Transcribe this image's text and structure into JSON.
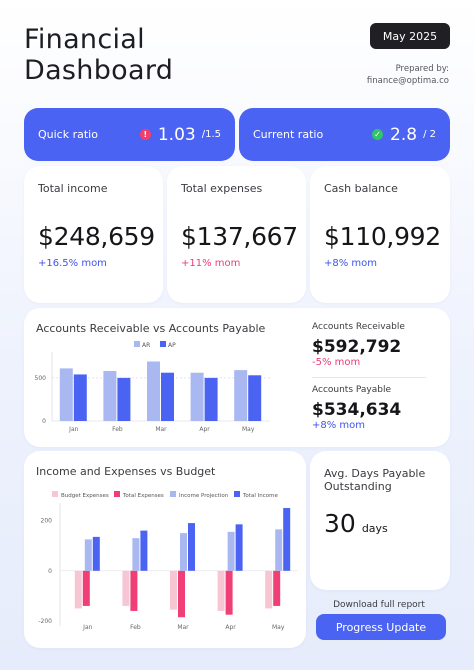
{
  "header": {
    "title_line1": "Financial",
    "title_line2": "Dashboard",
    "date": "May 2025",
    "prepared_by": "Prepared by:",
    "email": "finance@optima.co"
  },
  "ratios": [
    {
      "label": "Quick ratio",
      "value": "1.03",
      "target": "/1.5",
      "status": "alert",
      "badge_color": "#f23e6a"
    },
    {
      "label": "Current ratio",
      "value": "2.8",
      "target": "/ 2",
      "status": "ok",
      "badge_color": "#33c36b"
    }
  ],
  "kpis": [
    {
      "label": "Total income",
      "value": "$248,659",
      "change": "+16.5% mom",
      "tone": "blue"
    },
    {
      "label": "Total expenses",
      "value": "$137,667",
      "change": "+11% mom",
      "tone": "pink"
    },
    {
      "label": "Cash balance",
      "value": "$110,992",
      "change": "+8% mom",
      "tone": "blue"
    }
  ],
  "ar_ap": {
    "title": "Accounts Receivable vs Accounts Payable",
    "receivable_label": "Accounts Receivable",
    "receivable_value": "$592,792",
    "receivable_change": "-5% mom",
    "payable_label": "Accounts Payable",
    "payable_value": "$534,634",
    "payable_change": "+8% mom"
  },
  "budget": {
    "title": "Income and Expenses vs Budget"
  },
  "dpo": {
    "label": "Avg. Days Payable Outstanding",
    "value": "30",
    "unit": "days"
  },
  "actions": {
    "download_text": "Download full report",
    "button_label": "Progress Update"
  },
  "colors": {
    "accent": "#4b63f2",
    "light_blue": "#aab8f1",
    "pink": "#ef3f76",
    "light_pink": "#f7c6d4"
  },
  "chart_data": [
    {
      "type": "bar",
      "title": "Accounts Receivable vs Accounts Payable",
      "categories": [
        "Jan",
        "Feb",
        "Mar",
        "Apr",
        "May"
      ],
      "series": [
        {
          "name": "AR",
          "values": [
            610,
            580,
            690,
            560,
            590
          ]
        },
        {
          "name": "AP",
          "values": [
            540,
            500,
            560,
            500,
            530
          ]
        }
      ],
      "yticks": [
        0,
        500
      ],
      "ylim": [
        0,
        800
      ],
      "legend": "top-center",
      "reference_line": 500
    },
    {
      "type": "bar",
      "title": "Income and Expenses vs Budget",
      "categories": [
        "Jan",
        "Feb",
        "Mar",
        "Apr",
        "May"
      ],
      "series": [
        {
          "name": "Budget Expenses",
          "values": [
            -150,
            -140,
            -155,
            -160,
            -150
          ]
        },
        {
          "name": "Total Expenses",
          "values": [
            -140,
            -160,
            -185,
            -175,
            -140
          ]
        },
        {
          "name": "Income Projection",
          "values": [
            125,
            130,
            150,
            155,
            165
          ]
        },
        {
          "name": "Total Income",
          "values": [
            135,
            160,
            190,
            185,
            250
          ]
        }
      ],
      "yticks": [
        -200,
        0,
        200
      ],
      "ylim": [
        -220,
        270
      ],
      "legend": "top"
    }
  ]
}
